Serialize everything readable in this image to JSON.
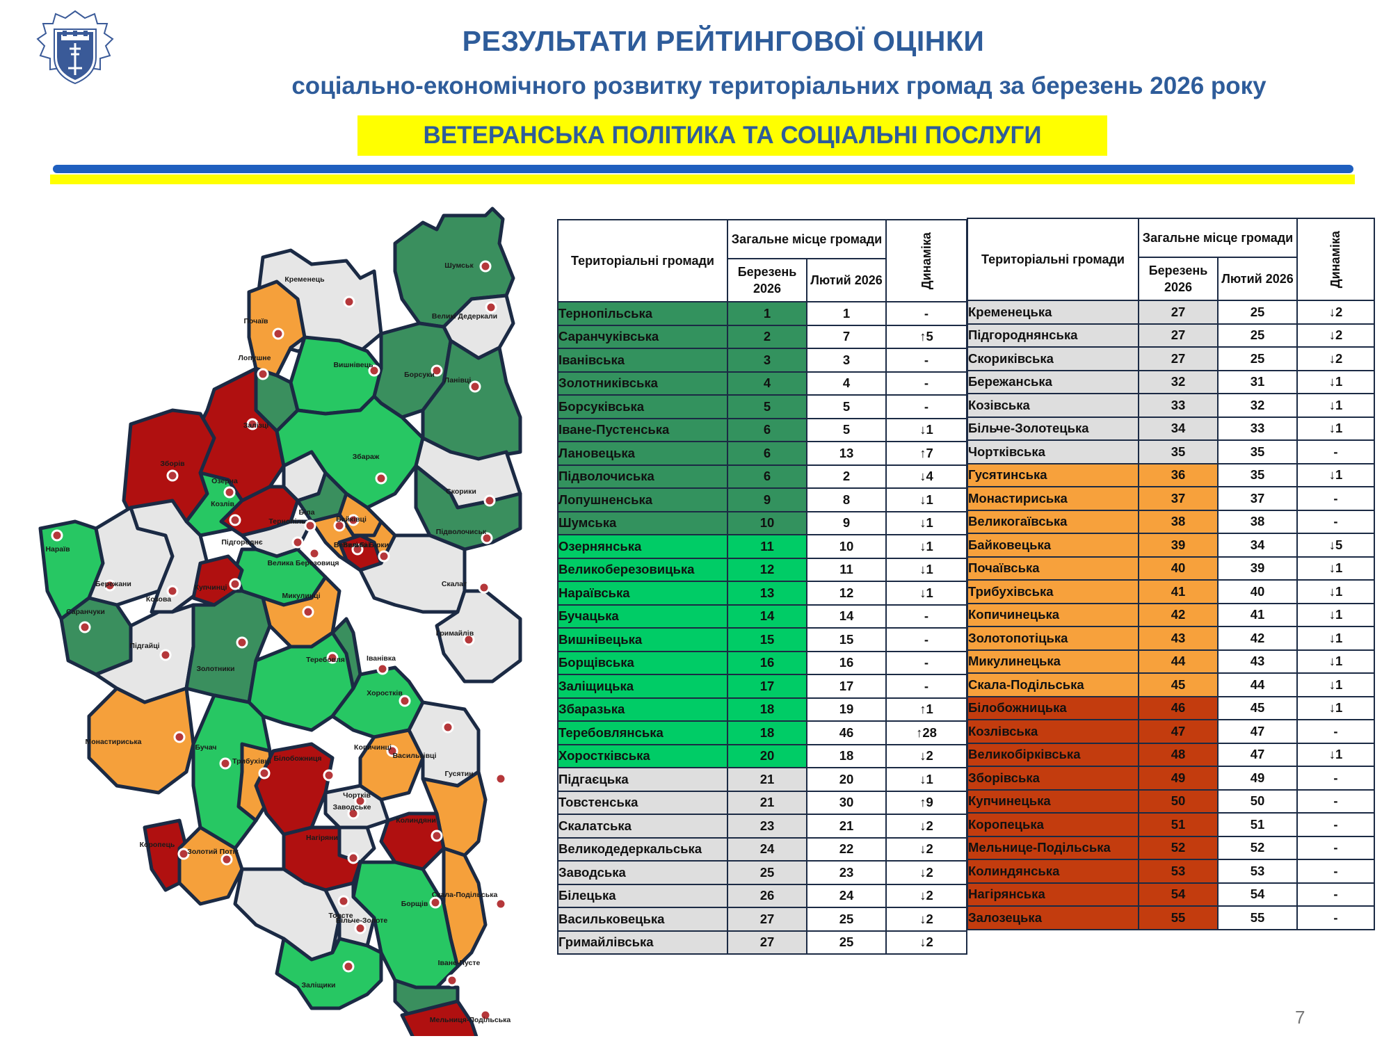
{
  "header": {
    "title": "РЕЗУЛЬТАТИ РЕЙТИНГОВОЇ ОЦІНКИ",
    "subtitle": "соціально-економічного розвитку територіальних громад за березень 2026 року",
    "section": "ВЕТЕРАНСЬКА ПОЛІТИКА ТА  СОЦІАЛЬНІ ПОСЛУГИ"
  },
  "colors": {
    "title": "#2e5c9a",
    "top_dark_green": "#33925e",
    "bright_green": "#00cc66",
    "grey": "#dedede",
    "orange": "#f7a13c",
    "red": "#c33c0e",
    "map_dark_green": "#3a8f5e",
    "map_green": "#27c763",
    "map_grey": "#e6e6e6",
    "map_orange": "#f5a03b",
    "map_red": "#b01010",
    "stripe_blue": "#1f5fbf",
    "stripe_yellow": "#ffff00"
  },
  "table": {
    "headers": {
      "communities": "Територіальні громади",
      "overall_place": "Загальне місце громади",
      "march": "Березень 2026",
      "february": "Лютий 2026",
      "dynamics": "Динаміка"
    },
    "left_rows": [
      {
        "name": "Тернопільська",
        "march": "1",
        "feb": "1",
        "dyn": "-",
        "group": "top"
      },
      {
        "name": "Саранчуківська",
        "march": "2",
        "feb": "7",
        "dyn": "↑5",
        "group": "top"
      },
      {
        "name": "Іванівська",
        "march": "3",
        "feb": "3",
        "dyn": "-",
        "group": "top"
      },
      {
        "name": "Золотниківська",
        "march": "4",
        "feb": "4",
        "dyn": "-",
        "group": "top"
      },
      {
        "name": "Борсуківська",
        "march": "5",
        "feb": "5",
        "dyn": "-",
        "group": "top"
      },
      {
        "name": "Іване-Пустенська",
        "march": "6",
        "feb": "5",
        "dyn": "↓1",
        "group": "top"
      },
      {
        "name": "Лановецька",
        "march": "6",
        "feb": "13",
        "dyn": "↑7",
        "group": "top"
      },
      {
        "name": "Підволочиська",
        "march": "6",
        "feb": "2",
        "dyn": "↓4",
        "group": "top"
      },
      {
        "name": "Лопушненська",
        "march": "9",
        "feb": "8",
        "dyn": "↓1",
        "group": "top"
      },
      {
        "name": "Шумська",
        "march": "10",
        "feb": "9",
        "dyn": "↓1",
        "group": "top"
      },
      {
        "name": "Озернянська",
        "march": "11",
        "feb": "10",
        "dyn": "↓1",
        "group": "good"
      },
      {
        "name": "Великоберезовицька",
        "march": "12",
        "feb": "11",
        "dyn": "↓1",
        "group": "good"
      },
      {
        "name": "Нараївська",
        "march": "13",
        "feb": "12",
        "dyn": "↓1",
        "group": "good"
      },
      {
        "name": "Бучацька",
        "march": "14",
        "feb": "14",
        "dyn": "-",
        "group": "good"
      },
      {
        "name": "Вишнівецька",
        "march": "15",
        "feb": "15",
        "dyn": "-",
        "group": "good"
      },
      {
        "name": "Борщівська",
        "march": "16",
        "feb": "16",
        "dyn": "-",
        "group": "good"
      },
      {
        "name": "Заліщицька",
        "march": "17",
        "feb": "17",
        "dyn": "-",
        "group": "good"
      },
      {
        "name": "Збаразька",
        "march": "18",
        "feb": "19",
        "dyn": "↑1",
        "group": "good"
      },
      {
        "name": "Теребовлянська",
        "march": "18",
        "feb": "46",
        "dyn": "↑28",
        "group": "good"
      },
      {
        "name": "Хоростківська",
        "march": "20",
        "feb": "18",
        "dyn": "↓2",
        "group": "good"
      },
      {
        "name": "Підгаєцька",
        "march": "21",
        "feb": "20",
        "dyn": "↓1",
        "group": "mid"
      },
      {
        "name": "Товстенська",
        "march": "21",
        "feb": "30",
        "dyn": "↑9",
        "group": "mid"
      },
      {
        "name": "Скалатська",
        "march": "23",
        "feb": "21",
        "dyn": "↓2",
        "group": "mid"
      },
      {
        "name": "Великодедеркальська",
        "march": "24",
        "feb": "22",
        "dyn": "↓2",
        "group": "mid"
      },
      {
        "name": "Заводська",
        "march": "25",
        "feb": "23",
        "dyn": "↓2",
        "group": "mid"
      },
      {
        "name": "Білецька",
        "march": "26",
        "feb": "24",
        "dyn": "↓2",
        "group": "mid"
      },
      {
        "name": "Васильковецька",
        "march": "27",
        "feb": "25",
        "dyn": "↓2",
        "group": "mid"
      },
      {
        "name": "Гримайлівська",
        "march": "27",
        "feb": "25",
        "dyn": "↓2",
        "group": "mid"
      }
    ],
    "right_rows": [
      {
        "name": "Кременецька",
        "march": "27",
        "feb": "25",
        "dyn": "↓2",
        "group": "mid"
      },
      {
        "name": "Підгороднянська",
        "march": "27",
        "feb": "25",
        "dyn": "↓2",
        "group": "mid"
      },
      {
        "name": "Скориківська",
        "march": "27",
        "feb": "25",
        "dyn": "↓2",
        "group": "mid"
      },
      {
        "name": "Бережанська",
        "march": "32",
        "feb": "31",
        "dyn": "↓1",
        "group": "mid"
      },
      {
        "name": "Козівська",
        "march": "33",
        "feb": "32",
        "dyn": "↓1",
        "group": "mid"
      },
      {
        "name": "Більче-Золотецька",
        "march": "34",
        "feb": "33",
        "dyn": "↓1",
        "group": "mid"
      },
      {
        "name": "Чортківська",
        "march": "35",
        "feb": "35",
        "dyn": "-",
        "group": "mid"
      },
      {
        "name": "Гусятинська",
        "march": "36",
        "feb": "35",
        "dyn": "↓1",
        "group": "low"
      },
      {
        "name": "Монастириська",
        "march": "37",
        "feb": "37",
        "dyn": "-",
        "group": "low"
      },
      {
        "name": "Великогаївська",
        "march": "38",
        "feb": "38",
        "dyn": "-",
        "group": "low"
      },
      {
        "name": "Байковецька",
        "march": "39",
        "feb": "34",
        "dyn": "↓5",
        "group": "low"
      },
      {
        "name": "Почаївська",
        "march": "40",
        "feb": "39",
        "dyn": "↓1",
        "group": "low"
      },
      {
        "name": "Трибухівська",
        "march": "41",
        "feb": "40",
        "dyn": "↓1",
        "group": "low"
      },
      {
        "name": "Копичинецька",
        "march": "42",
        "feb": "41",
        "dyn": "↓1",
        "group": "low"
      },
      {
        "name": "Золотопотіцька",
        "march": "43",
        "feb": "42",
        "dyn": "↓1",
        "group": "low"
      },
      {
        "name": "Микулинецька",
        "march": "44",
        "feb": "43",
        "dyn": "↓1",
        "group": "low"
      },
      {
        "name": "Скала-Подільська",
        "march": "45",
        "feb": "44",
        "dyn": "↓1",
        "group": "low"
      },
      {
        "name": "Білобожницька",
        "march": "46",
        "feb": "45",
        "dyn": "↓1",
        "group": "bottom"
      },
      {
        "name": "Козлівська",
        "march": "47",
        "feb": "47",
        "dyn": "-",
        "group": "bottom"
      },
      {
        "name": "Великобірківська",
        "march": "48",
        "feb": "47",
        "dyn": "↓1",
        "group": "bottom"
      },
      {
        "name": "Зборівська",
        "march": "49",
        "feb": "49",
        "dyn": "-",
        "group": "bottom"
      },
      {
        "name": "Купчинецька",
        "march": "50",
        "feb": "50",
        "dyn": "-",
        "group": "bottom"
      },
      {
        "name": "Коропецька",
        "march": "51",
        "feb": "51",
        "dyn": "-",
        "group": "bottom"
      },
      {
        "name": "Мельнице-Подільська",
        "march": "52",
        "feb": "52",
        "dyn": "-",
        "group": "bottom"
      },
      {
        "name": "Колиндянська",
        "march": "53",
        "feb": "53",
        "dyn": "-",
        "group": "bottom"
      },
      {
        "name": "Нагірянська",
        "march": "54",
        "feb": "54",
        "dyn": "-",
        "group": "bottom"
      },
      {
        "name": "Залозецька",
        "march": "55",
        "feb": "55",
        "dyn": "-",
        "group": "bottom"
      }
    ]
  },
  "map": {
    "labels": [
      {
        "text": "Кременець",
        "color": "grey"
      },
      {
        "text": "Шумськ",
        "color": "dgreen"
      },
      {
        "text": "Почаїв",
        "color": "orange"
      },
      {
        "text": "Великі Дедеркали",
        "color": "grey"
      },
      {
        "text": "Лопушне",
        "color": "dgreen"
      },
      {
        "text": "Вишнівець",
        "color": "green"
      },
      {
        "text": "Борсуки",
        "color": "dgreen"
      },
      {
        "text": "Ланівці",
        "color": "dgreen"
      },
      {
        "text": "Залізці",
        "color": "red"
      },
      {
        "text": "Зборів",
        "color": "red"
      },
      {
        "text": "Озерна",
        "color": "green"
      },
      {
        "text": "Збараж",
        "color": "green"
      },
      {
        "text": "Скорики",
        "color": "grey"
      },
      {
        "text": "Біла",
        "color": "grey"
      },
      {
        "text": "Тернопіль",
        "color": "dgreen"
      },
      {
        "text": "Байківці",
        "color": "orange"
      },
      {
        "text": "Козлів",
        "color": "red"
      },
      {
        "text": "Підволочиськ",
        "color": "dgreen"
      },
      {
        "text": "Нараїв",
        "color": "green"
      },
      {
        "text": "Підгороднє",
        "color": "grey"
      },
      {
        "text": "Великі Гаї",
        "color": "orange"
      },
      {
        "text": "Великі Бірки",
        "color": "red"
      },
      {
        "text": "Велика Березовиця",
        "color": "green"
      },
      {
        "text": "Бережани",
        "color": "grey"
      },
      {
        "text": "Козова",
        "color": "grey"
      },
      {
        "text": "Купчинці",
        "color": "red"
      },
      {
        "text": "Скалат",
        "color": "grey"
      },
      {
        "text": "Саранчуки",
        "color": "dgreen"
      },
      {
        "text": "Микулинці",
        "color": "orange"
      },
      {
        "text": "Гримайлів",
        "color": "grey"
      },
      {
        "text": "Підгайці",
        "color": "grey"
      },
      {
        "text": "Золотники",
        "color": "dgreen"
      },
      {
        "text": "Теребовля",
        "color": "green"
      },
      {
        "text": "Іванівка",
        "color": "dgreen"
      },
      {
        "text": "Хоростків",
        "color": "green"
      },
      {
        "text": "Монастириська",
        "color": "orange"
      },
      {
        "text": "Копичинці",
        "color": "orange"
      },
      {
        "text": "Васильківці",
        "color": "grey"
      },
      {
        "text": "Бучач",
        "color": "green"
      },
      {
        "text": "Трибухівці",
        "color": "orange"
      },
      {
        "text": "Білобожниця",
        "color": "red"
      },
      {
        "text": "Гусятин",
        "color": "orange"
      },
      {
        "text": "Чортків",
        "color": "grey"
      },
      {
        "text": "Заводське",
        "color": "grey"
      },
      {
        "text": "Колиндяни",
        "color": "red"
      },
      {
        "text": "Коропець",
        "color": "red"
      },
      {
        "text": "Золотий Потік",
        "color": "orange"
      },
      {
        "text": "Нагіряни",
        "color": "red"
      },
      {
        "text": "Товсте",
        "color": "grey"
      },
      {
        "text": "Скала-Подільська",
        "color": "orange"
      },
      {
        "text": "Борщів",
        "color": "green"
      },
      {
        "text": "Більче-Золоте",
        "color": "grey"
      },
      {
        "text": "Заліщики",
        "color": "green"
      },
      {
        "text": "Іване-Пусте",
        "color": "dgreen"
      },
      {
        "text": "Мельниця-Подільська",
        "color": "red"
      }
    ]
  },
  "page_number": "7"
}
